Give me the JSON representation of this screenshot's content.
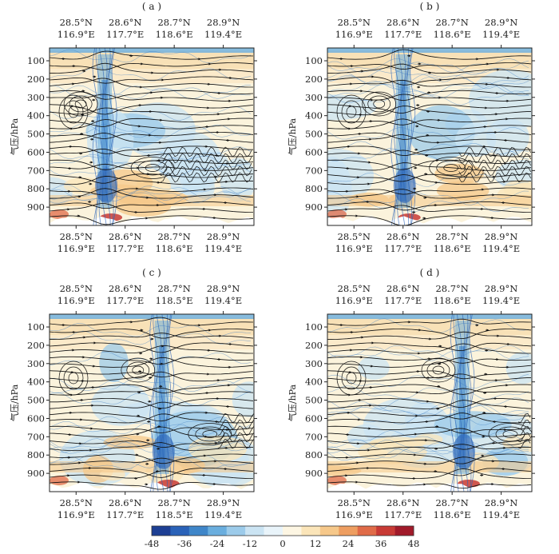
{
  "chart_data": {
    "type": "heatmap",
    "description_units": "shading: colorbar values; streamlines; vertical cross-sections",
    "ylabel": "气压/hPa",
    "ylim": [
      1000,
      30
    ],
    "y_ticks": [
      100,
      200,
      300,
      400,
      500,
      600,
      700,
      800,
      900
    ],
    "colorbar": {
      "ticks": [
        -48,
        -36,
        -24,
        -12,
        0,
        12,
        24,
        36,
        48
      ],
      "colors": [
        "#1d3f94",
        "#2a62b8",
        "#3f86c9",
        "#6aaede",
        "#9ccbea",
        "#cbe4f3",
        "#e9f4fa",
        "#fdf6e3",
        "#fbe5b9",
        "#f6c88a",
        "#ee9e61",
        "#e06b48",
        "#c83a35",
        "#a11a2a"
      ]
    },
    "panels": [
      {
        "label": "( a )",
        "top_ticks": [
          {
            "lat": "28.5°N",
            "lon": "116.9°E"
          },
          {
            "lat": "28.6°N",
            "lon": "117.7°E"
          },
          {
            "lat": "28.7°N",
            "lon": "118.6°E"
          },
          {
            "lat": "28.9°N",
            "lon": "119.4°E"
          }
        ],
        "bottom_ticks": [
          {
            "lat": "28.5°N",
            "lon": "116.9°E"
          },
          {
            "lat": "28.6°N",
            "lon": "117.7°E"
          },
          {
            "lat": "28.7°N",
            "lon": "118.6°E"
          },
          {
            "lat": "28.9°N",
            "lon": "119.4°E"
          }
        ],
        "core_position": 0.27
      },
      {
        "label": "( b )",
        "top_ticks": [
          {
            "lat": "28.5°N",
            "lon": "116.9°E"
          },
          {
            "lat": "28.6°N",
            "lon": "117.7°E"
          },
          {
            "lat": "28.7°N",
            "lon": "118.6°E"
          },
          {
            "lat": "28.9°N",
            "lon": "119.4°E"
          }
        ],
        "bottom_ticks": [
          {
            "lat": "28.5°N",
            "lon": "116.9°E"
          },
          {
            "lat": "28.6°N",
            "lon": "117.7°E"
          },
          {
            "lat": "28.7°N",
            "lon": "118.6°E"
          },
          {
            "lat": "28.9°N",
            "lon": "119.4°E"
          }
        ],
        "core_position": 0.37
      },
      {
        "label": "( c )",
        "top_ticks": [
          {
            "lat": "28.5°N",
            "lon": "116.9°E"
          },
          {
            "lat": "28.6°N",
            "lon": "117.7°E"
          },
          {
            "lat": "28.7°N",
            "lon": "118.5°E"
          },
          {
            "lat": "28.9°N",
            "lon": "119.4°E"
          }
        ],
        "bottom_ticks": [
          {
            "lat": "28.5°N",
            "lon": "116.9°E"
          },
          {
            "lat": "28.6°N",
            "lon": "117.7°E"
          },
          {
            "lat": "28.7°N",
            "lon": "118.5°E"
          },
          {
            "lat": "28.9°N",
            "lon": "119.4°E"
          }
        ],
        "core_position": 0.55
      },
      {
        "label": "( d )",
        "top_ticks": [
          {
            "lat": "28.5°N",
            "lon": "116.9°E"
          },
          {
            "lat": "28.6°N",
            "lon": "117.7°E"
          },
          {
            "lat": "28.7°N",
            "lon": "118.6°E"
          },
          {
            "lat": "28.9°N",
            "lon": "119.4°E"
          }
        ],
        "bottom_ticks": [
          {
            "lat": "28.5°N",
            "lon": "116.9°E"
          },
          {
            "lat": "28.6°N",
            "lon": "117.7°E"
          },
          {
            "lat": "28.7°N",
            "lon": "118.6°E"
          },
          {
            "lat": "28.9°N",
            "lon": "119.4°E"
          }
        ],
        "core_position": 0.66
      }
    ]
  }
}
